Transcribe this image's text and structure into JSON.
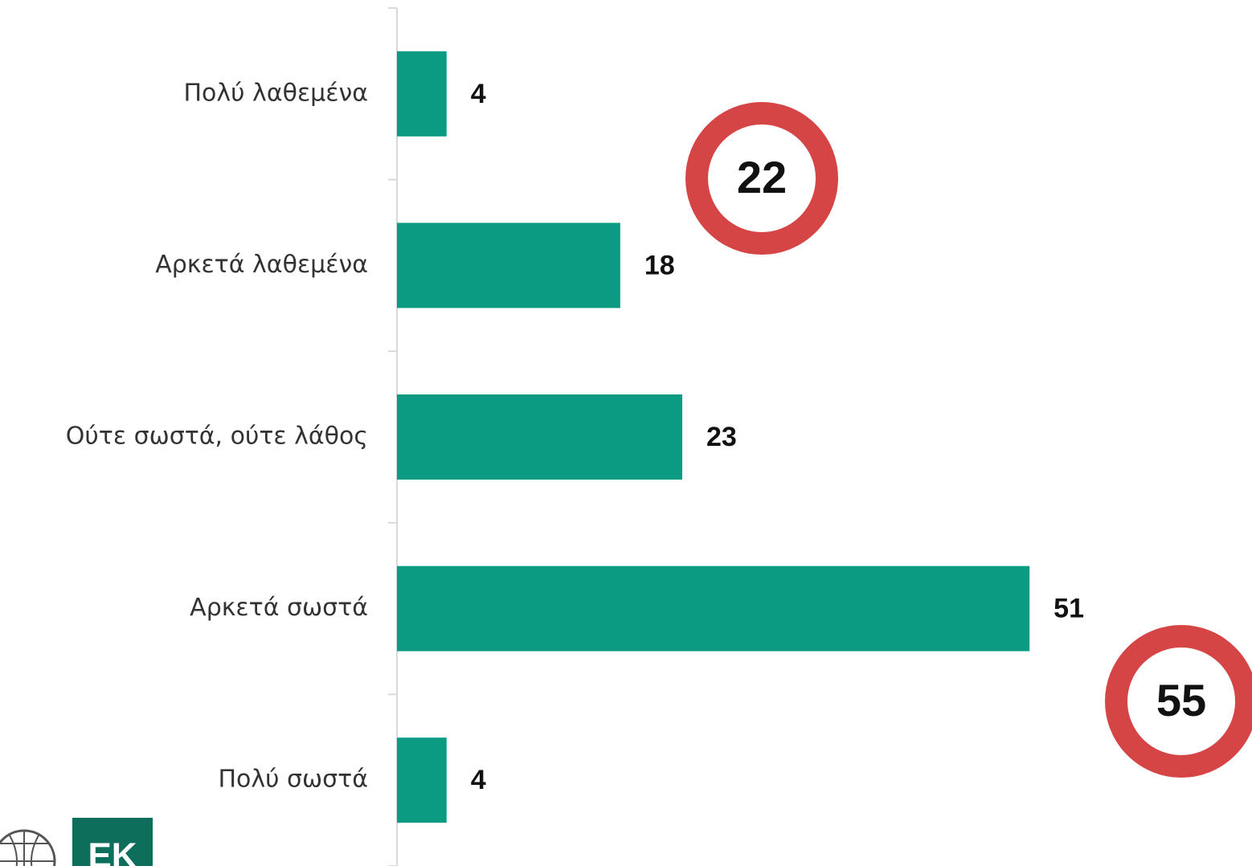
{
  "chart_data": {
    "type": "bar",
    "orientation": "horizontal",
    "categories": [
      "Πολύ λαθεμένα",
      "Αρκετά λαθεμένα",
      "Ούτε σωστά, ούτε λάθος",
      "Αρκετά σωστά",
      "Πολύ σωστά"
    ],
    "values": [
      4,
      18,
      23,
      51,
      4
    ],
    "color": "#0a9b82",
    "xlim": [
      0,
      69
    ],
    "annotations": [
      "22",
      "55"
    ],
    "annotation_color": "#d64545",
    "logo": "EK"
  }
}
